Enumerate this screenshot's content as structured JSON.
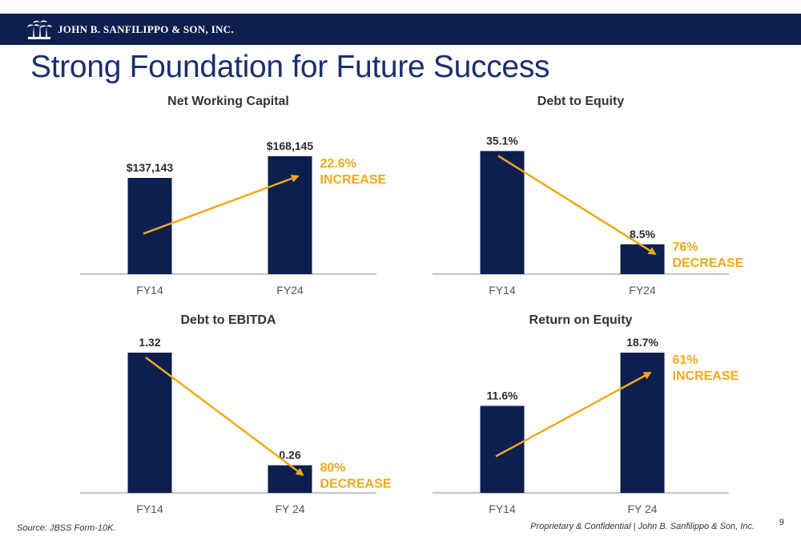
{
  "header": {
    "company": "JOHN B. SANFILIPPO & SON, INC.",
    "logo_icon": "palm-trees-logo-icon"
  },
  "page_title": "Strong Foundation for Future Success",
  "colors": {
    "bar": "#0d1f4f",
    "accent": "#f0a81a",
    "title": "#1b2f6e"
  },
  "chart_data": [
    {
      "type": "bar",
      "title": "Net Working Capital",
      "categories": [
        "FY14",
        "FY24"
      ],
      "values": [
        137143,
        168145
      ],
      "value_labels": [
        "$137,143",
        "$168,145"
      ],
      "ylim": [
        0,
        200000
      ],
      "annotation": [
        "22.6%",
        "INCREASE"
      ],
      "trend": "increase"
    },
    {
      "type": "bar",
      "title": "Debt to Equity",
      "categories": [
        "FY14",
        "FY24"
      ],
      "values": [
        35.1,
        8.5
      ],
      "value_labels": [
        "35.1%",
        "8.5%"
      ],
      "ylim": [
        0,
        40
      ],
      "annotation": [
        "76%",
        "DECREASE"
      ],
      "trend": "decrease"
    },
    {
      "type": "bar",
      "title": "Debt to EBITDA",
      "categories": [
        "FY14",
        "FY 24"
      ],
      "values": [
        1.32,
        0.26
      ],
      "value_labels": [
        "1.32",
        "0.26"
      ],
      "ylim": [
        0,
        1.32
      ],
      "annotation": [
        "80%",
        "DECREASE"
      ],
      "trend": "decrease"
    },
    {
      "type": "bar",
      "title": "Return on Equity",
      "categories": [
        "FY14",
        "FY 24"
      ],
      "values": [
        11.6,
        18.7
      ],
      "value_labels": [
        "11.6%",
        "18.7%"
      ],
      "ylim": [
        0,
        18.7
      ],
      "annotation": [
        "61%",
        "INCREASE"
      ],
      "trend": "increase"
    }
  ],
  "footer": {
    "source": "Source: JBSS Form-10K.",
    "confidential": "Proprietary & Confidential | John B. Sanfilippo & Son, Inc.",
    "page_number": "9"
  }
}
